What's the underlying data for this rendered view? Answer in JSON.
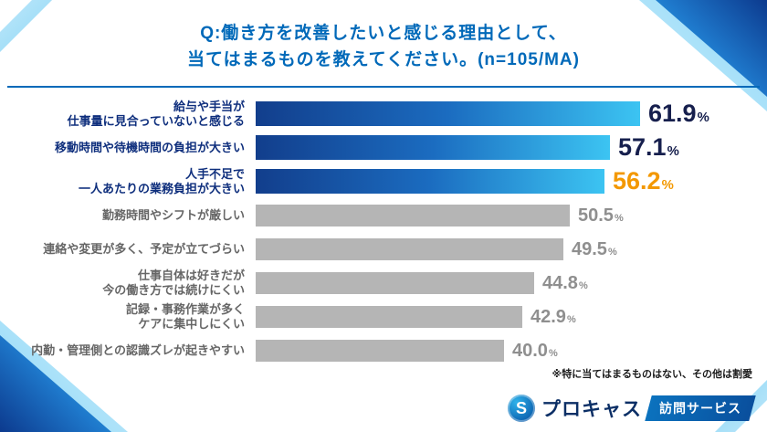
{
  "title": {
    "line1": "Q:働き方を改善したいと感じる理由として、",
    "line2": "当てはまるものを教えてください。(n=105/MA)"
  },
  "footnote": "※特に当てはまるものはない、その他は割愛",
  "logo": {
    "icon_letter": "S",
    "brand": "プロキャス",
    "service_tag": "訪問サービス"
  },
  "colors": {
    "title_blue": "#0069b9",
    "bar_gradient_start": "#123e8c",
    "bar_gradient_end": "#3cc4f2",
    "bar_gray": "#b5b5b5",
    "value_navy": "#161f4d",
    "value_orange": "#f39800",
    "value_gray": "#8f8f8f",
    "label_navy": "#0f2f7d",
    "label_gray": "#666666"
  },
  "chart_data": {
    "type": "bar",
    "orientation": "horizontal",
    "title": "Q:働き方を改善したいと感じる理由として、当てはまるものを教えてください。(n=105/MA)",
    "sample_note": "n=105/MA",
    "unit": "%",
    "xlim": [
      0,
      63.5
    ],
    "grid": false,
    "legend": "none",
    "categories": [
      "給与や手当が仕事量に見合っていないと感じる",
      "移動時間や待機時間の負担が大きい",
      "人手不足で一人あたりの業務負担が大きい",
      "勤務時間やシフトが厳しい",
      "連絡や変更が多く、予定が立てづらい",
      "仕事自体は好きだが今の働き方では続けにくい",
      "記録・事務作業が多くケアに集中しにくい",
      "内勤・管理側との認識ズレが起きやすい"
    ],
    "values": [
      61.9,
      57.1,
      56.2,
      50.5,
      49.5,
      44.8,
      42.9,
      40.0
    ],
    "rows": [
      {
        "label_lines": [
          "給与や手当が",
          "仕事量に見合っていないと感じる"
        ],
        "value": 61.9,
        "bar_style": "blue",
        "value_style": "navy",
        "label_style": "navy"
      },
      {
        "label_lines": [
          "移動時間や待機時間の負担が大きい"
        ],
        "value": 57.1,
        "bar_style": "blue",
        "value_style": "navy",
        "label_style": "navy"
      },
      {
        "label_lines": [
          "人手不足で",
          "一人あたりの業務負担が大きい"
        ],
        "value": 56.2,
        "bar_style": "blue",
        "value_style": "orange",
        "label_style": "navy"
      },
      {
        "label_lines": [
          "勤務時間やシフトが厳しい"
        ],
        "value": 50.5,
        "bar_style": "gray",
        "value_style": "gray",
        "label_style": "gray"
      },
      {
        "label_lines": [
          "連絡や変更が多く、予定が立てづらい"
        ],
        "value": 49.5,
        "bar_style": "gray",
        "value_style": "gray",
        "label_style": "gray"
      },
      {
        "label_lines": [
          "仕事自体は好きだが",
          "今の働き方では続けにくい"
        ],
        "value": 44.8,
        "bar_style": "gray",
        "value_style": "gray",
        "label_style": "gray"
      },
      {
        "label_lines": [
          "記録・事務作業が多く",
          "ケアに集中しにくい"
        ],
        "value": 42.9,
        "bar_style": "gray",
        "value_style": "gray",
        "label_style": "gray"
      },
      {
        "label_lines": [
          "内勤・管理側との認識ズレが起きやすい"
        ],
        "value": 40.0,
        "bar_style": "gray",
        "value_style": "gray",
        "label_style": "gray"
      }
    ]
  }
}
